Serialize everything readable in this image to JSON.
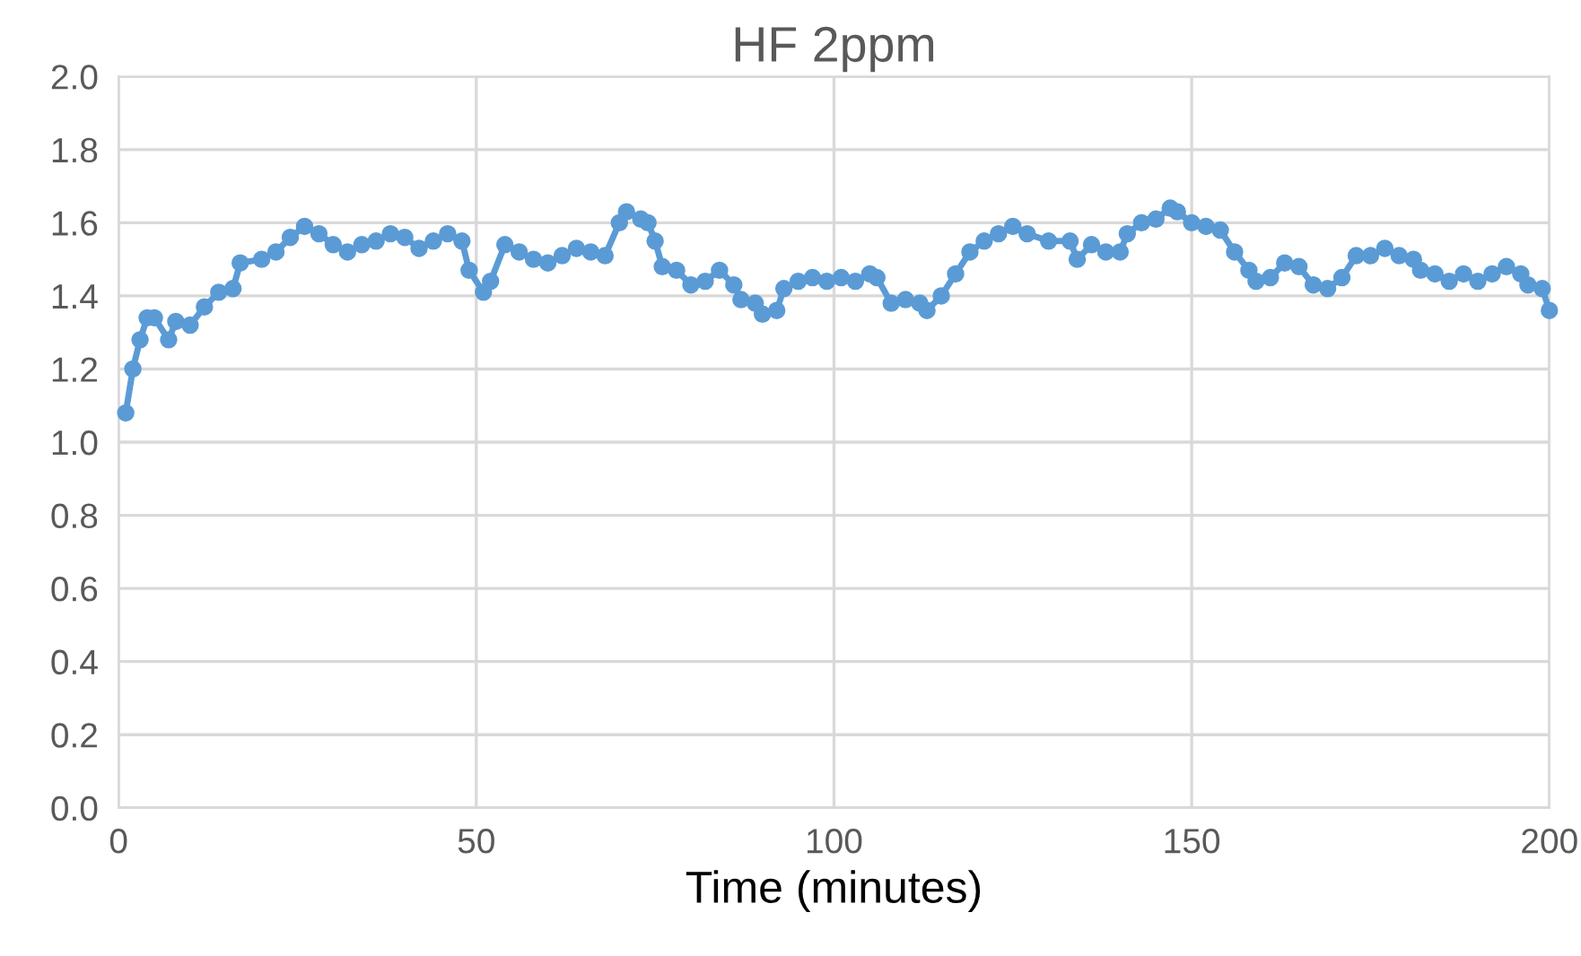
{
  "chart_data": {
    "type": "line",
    "title": "HF 2ppm",
    "xlabel": "Time (minutes)",
    "xlim": [
      0,
      200
    ],
    "xticks": [
      0,
      50,
      100,
      150,
      200
    ],
    "ylim": [
      0,
      2.0
    ],
    "yticks": [
      {
        "value": 0,
        "label": "0.0"
      },
      {
        "value": 0.2,
        "label": "0.2"
      },
      {
        "value": 0.4,
        "label": "0.4"
      },
      {
        "value": 0.6,
        "label": "0.6"
      },
      {
        "value": 0.8,
        "label": "0.8"
      },
      {
        "value": 1.0,
        "label": "1.0"
      },
      {
        "value": 1.2,
        "label": "1.2"
      },
      {
        "value": 1.4,
        "label": "1.4"
      },
      {
        "value": 1.6,
        "label": "1.6"
      },
      {
        "value": 1.8,
        "label": "1.8"
      },
      {
        "value": 2.0,
        "label": "2.0"
      }
    ],
    "grid": true,
    "marker": "circle",
    "line_style": "solid",
    "legend": false,
    "series": [
      {
        "color": "#5b9bd5",
        "x": [
          1,
          2,
          3,
          4,
          5,
          7,
          8,
          10,
          12,
          14,
          16,
          17,
          20,
          22,
          24,
          26,
          28,
          30,
          32,
          34,
          36,
          38,
          40,
          42,
          44,
          46,
          48,
          49,
          51,
          52,
          54,
          56,
          58,
          60,
          62,
          64,
          66,
          68,
          70,
          71,
          73,
          74,
          75,
          76,
          78,
          80,
          82,
          84,
          86,
          87,
          89,
          90,
          92,
          93,
          95,
          97,
          99,
          101,
          103,
          105,
          106,
          108,
          110,
          112,
          113,
          115,
          117,
          119,
          121,
          123,
          125,
          127,
          130,
          133,
          134,
          136,
          138,
          140,
          141,
          143,
          145,
          147,
          148,
          150,
          152,
          154,
          156,
          158,
          159,
          161,
          163,
          165,
          167,
          169,
          171,
          173,
          175,
          177,
          179,
          181,
          182,
          184,
          186,
          188,
          190,
          192,
          194,
          196,
          197,
          199,
          200
        ],
        "values": [
          1.08,
          1.2,
          1.28,
          1.34,
          1.34,
          1.28,
          1.33,
          1.32,
          1.37,
          1.41,
          1.42,
          1.49,
          1.5,
          1.52,
          1.56,
          1.59,
          1.57,
          1.54,
          1.52,
          1.54,
          1.55,
          1.57,
          1.56,
          1.53,
          1.55,
          1.57,
          1.55,
          1.47,
          1.41,
          1.44,
          1.54,
          1.52,
          1.5,
          1.49,
          1.51,
          1.53,
          1.52,
          1.51,
          1.6,
          1.63,
          1.61,
          1.6,
          1.55,
          1.48,
          1.47,
          1.43,
          1.44,
          1.47,
          1.43,
          1.39,
          1.38,
          1.35,
          1.36,
          1.42,
          1.44,
          1.45,
          1.44,
          1.45,
          1.44,
          1.46,
          1.45,
          1.38,
          1.39,
          1.38,
          1.36,
          1.4,
          1.46,
          1.52,
          1.55,
          1.57,
          1.59,
          1.57,
          1.55,
          1.55,
          1.5,
          1.54,
          1.52,
          1.52,
          1.57,
          1.6,
          1.61,
          1.64,
          1.63,
          1.6,
          1.59,
          1.58,
          1.52,
          1.47,
          1.44,
          1.45,
          1.49,
          1.48,
          1.43,
          1.42,
          1.45,
          1.51,
          1.51,
          1.53,
          1.51,
          1.5,
          1.47,
          1.46,
          1.44,
          1.46,
          1.44,
          1.46,
          1.48,
          1.46,
          1.43,
          1.42,
          1.36
        ]
      }
    ]
  }
}
